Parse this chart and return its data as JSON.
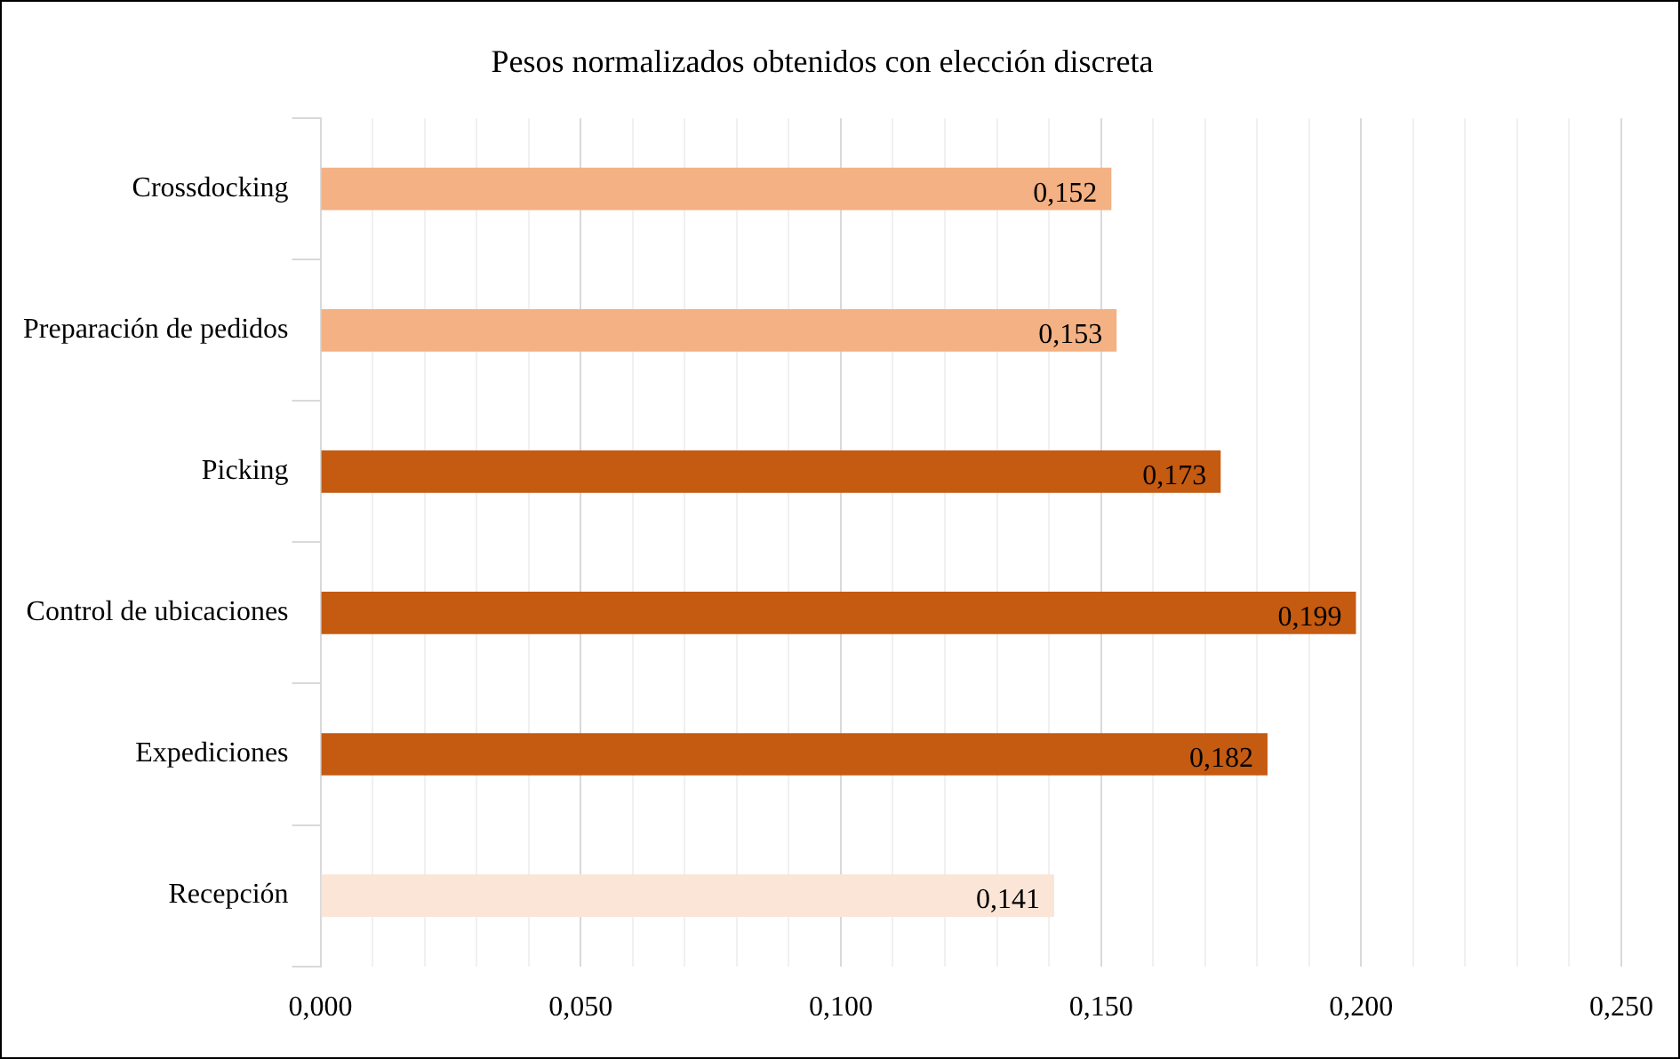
{
  "chart_data": {
    "type": "bar",
    "orientation": "horizontal",
    "title": "Pesos normalizados obtenidos con elección discreta",
    "categories": [
      "Crossdocking",
      "Preparación de pedidos",
      "Picking",
      "Control de ubicaciones",
      "Expediciones",
      "Recepción"
    ],
    "values": [
      0.152,
      0.153,
      0.173,
      0.199,
      0.182,
      0.141
    ],
    "colors": [
      "#f4b183",
      "#f4b183",
      "#c55a11",
      "#c55a11",
      "#c55a11",
      "#fbe5d6"
    ],
    "value_labels": [
      "0,152",
      "0,153",
      "0,173",
      "0,199",
      "0,182",
      "0,141"
    ],
    "xlim": [
      0,
      0.25
    ],
    "xticks": [
      {
        "value": 0,
        "label": "0,000"
      },
      {
        "value": 0.01,
        "label": null
      },
      {
        "value": 0.02,
        "label": null
      },
      {
        "value": 0.03,
        "label": null
      },
      {
        "value": 0.04,
        "label": null
      },
      {
        "value": 0.05,
        "label": "0,050"
      },
      {
        "value": 0.06,
        "label": null
      },
      {
        "value": 0.07,
        "label": null
      },
      {
        "value": 0.08,
        "label": null
      },
      {
        "value": 0.09,
        "label": null
      },
      {
        "value": 0.1,
        "label": "0,100"
      },
      {
        "value": 0.11,
        "label": null
      },
      {
        "value": 0.12,
        "label": null
      },
      {
        "value": 0.13,
        "label": null
      },
      {
        "value": 0.14,
        "label": null
      },
      {
        "value": 0.15,
        "label": "0,150"
      },
      {
        "value": 0.16,
        "label": null
      },
      {
        "value": 0.17,
        "label": null
      },
      {
        "value": 0.18,
        "label": null
      },
      {
        "value": 0.19,
        "label": null
      },
      {
        "value": 0.2,
        "label": "0,200"
      },
      {
        "value": 0.21,
        "label": null
      },
      {
        "value": 0.22,
        "label": null
      },
      {
        "value": 0.23,
        "label": null
      },
      {
        "value": 0.24,
        "label": null
      },
      {
        "value": 0.25,
        "label": "0,250"
      }
    ],
    "grid": "x",
    "legend": false
  }
}
